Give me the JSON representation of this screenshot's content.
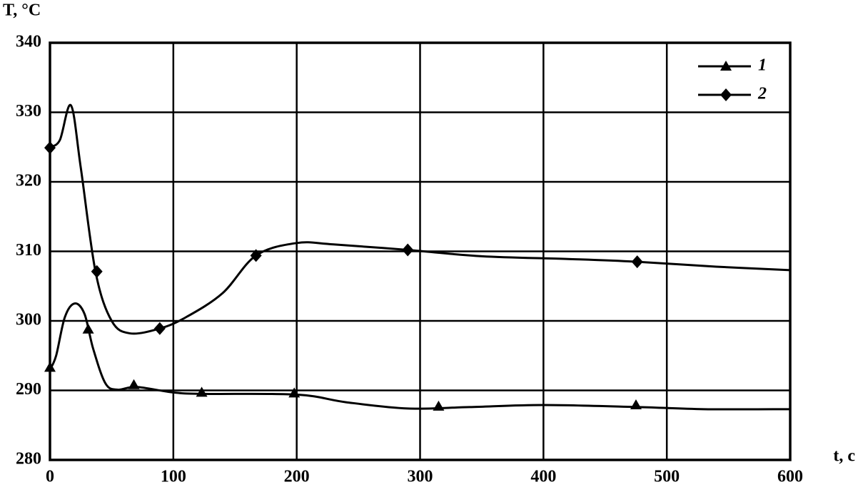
{
  "chart_data": {
    "type": "line",
    "y_label": "T, °C",
    "x_label": "t, c",
    "xlim": [
      0,
      600
    ],
    "xticks": [
      0,
      100,
      200,
      300,
      400,
      500,
      600
    ],
    "ylim": [
      280,
      340
    ],
    "yticks": [
      280,
      290,
      300,
      310,
      320,
      330,
      340
    ],
    "grid": true,
    "legend": "top-right",
    "series": [
      {
        "name": "1",
        "color": "#000000",
        "marker": "triangle",
        "x": [
          0,
          5,
          12,
          20,
          28,
          35,
          45,
          55,
          70,
          100,
          125,
          200,
          240,
          290,
          340,
          400,
          477,
          530,
          600
        ],
        "values": [
          293,
          295,
          300.5,
          302.5,
          301,
          296,
          291,
          290.1,
          290.5,
          289.7,
          289.5,
          289.4,
          288.3,
          287.4,
          287.6,
          287.9,
          287.6,
          287.3,
          287.3
        ],
        "marker_x": [
          0,
          31,
          68,
          123,
          198,
          315,
          475
        ],
        "marker_values": [
          293.3,
          298.8,
          290.8,
          289.7,
          289.6,
          287.7,
          287.9
        ]
      },
      {
        "name": "2",
        "color": "#000000",
        "marker": "diamond",
        "x": [
          0,
          8,
          17,
          25,
          37,
          50,
          65,
          89,
          110,
          140,
          167,
          200,
          230,
          290,
          350,
          420,
          476,
          540,
          600
        ],
        "values": [
          325,
          326,
          331,
          322,
          307,
          300,
          298.2,
          298.9,
          300.5,
          304,
          309.4,
          311.2,
          311,
          310.2,
          309.3,
          308.9,
          308.5,
          307.8,
          307.3
        ],
        "marker_x": [
          0,
          38,
          89,
          167,
          290,
          476
        ],
        "marker_values": [
          324.9,
          307.1,
          298.9,
          309.4,
          310.2,
          308.5
        ]
      }
    ]
  }
}
